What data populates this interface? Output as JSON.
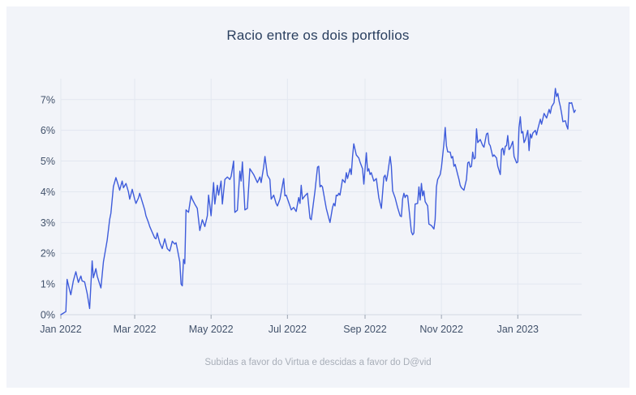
{
  "title": "Racio entre os dois portfolios",
  "caption": "Subidas a favor do Virtua e descidas a favor do D@vid",
  "colors": {
    "page_bg": "#ffffff",
    "card_bg": "#f2f4f9",
    "grid": "#e2e7f0",
    "zero_line": "#d3d9e3",
    "line": "#3e5cdb",
    "title": "#2a3f5f",
    "tick_label": "#42526b",
    "caption": "#a8aeb8"
  },
  "chart_data": {
    "type": "line",
    "title": "Racio entre os dois portfolios",
    "subtitle": "Subidas a favor do Virtua e descidas a favor do D@vid",
    "xlabel": "",
    "ylabel": "",
    "x_unit": "days since 2022-01-01",
    "xlim": [
      0,
      416
    ],
    "ylim": [
      0,
      7.68
    ],
    "grid": true,
    "legend": "none",
    "x_ticks": [
      {
        "label": "Jan 2022",
        "day": 0
      },
      {
        "label": "Mar 2022",
        "day": 59
      },
      {
        "label": "May 2022",
        "day": 120
      },
      {
        "label": "Jul 2022",
        "day": 181
      },
      {
        "label": "Sep 2022",
        "day": 243
      },
      {
        "label": "Nov 2022",
        "day": 304
      },
      {
        "label": "Jan 2023",
        "day": 365
      }
    ],
    "y_ticks": [
      {
        "label": "0%",
        "value": 0
      },
      {
        "label": "1%",
        "value": 1
      },
      {
        "label": "2%",
        "value": 2
      },
      {
        "label": "3%",
        "value": 3
      },
      {
        "label": "4%",
        "value": 4
      },
      {
        "label": "5%",
        "value": 5
      },
      {
        "label": "6%",
        "value": 6
      },
      {
        "label": "7%",
        "value": 7
      }
    ],
    "series": [
      {
        "name": "racio",
        "color": "#3e5cdb",
        "points": [
          [
            0,
            0.0
          ],
          [
            2,
            0.05
          ],
          [
            4,
            0.1
          ],
          [
            5,
            1.15
          ],
          [
            7,
            0.8
          ],
          [
            8,
            0.65
          ],
          [
            10,
            1.1
          ],
          [
            12,
            1.4
          ],
          [
            14,
            1.05
          ],
          [
            16,
            1.26
          ],
          [
            17,
            1.1
          ],
          [
            19,
            1.07
          ],
          [
            21,
            0.7
          ],
          [
            23,
            0.2
          ],
          [
            25,
            1.75
          ],
          [
            26,
            1.2
          ],
          [
            28,
            1.5
          ],
          [
            29,
            1.26
          ],
          [
            31,
            1.0
          ],
          [
            32,
            0.87
          ],
          [
            34,
            1.72
          ],
          [
            37,
            2.42
          ],
          [
            39,
            3.1
          ],
          [
            40,
            3.3
          ],
          [
            42,
            4.17
          ],
          [
            44,
            4.46
          ],
          [
            46,
            4.2
          ],
          [
            47,
            4.05
          ],
          [
            49,
            4.35
          ],
          [
            50,
            4.13
          ],
          [
            52,
            4.27
          ],
          [
            54,
            4.0
          ],
          [
            55,
            3.76
          ],
          [
            57,
            4.08
          ],
          [
            59,
            3.75
          ],
          [
            60,
            3.62
          ],
          [
            62,
            3.8
          ],
          [
            63,
            3.95
          ],
          [
            65,
            3.68
          ],
          [
            67,
            3.41
          ],
          [
            68,
            3.22
          ],
          [
            70,
            3.0
          ],
          [
            71,
            2.87
          ],
          [
            73,
            2.68
          ],
          [
            75,
            2.5
          ],
          [
            76,
            2.47
          ],
          [
            77,
            2.66
          ],
          [
            79,
            2.34
          ],
          [
            81,
            2.15
          ],
          [
            83,
            2.47
          ],
          [
            85,
            2.15
          ],
          [
            87,
            2.07
          ],
          [
            89,
            2.39
          ],
          [
            91,
            2.3
          ],
          [
            92,
            2.34
          ],
          [
            93,
            2.15
          ],
          [
            95,
            1.72
          ],
          [
            96,
            1.0
          ],
          [
            97,
            0.94
          ],
          [
            98,
            1.8
          ],
          [
            99,
            1.66
          ],
          [
            100,
            3.41
          ],
          [
            102,
            3.33
          ],
          [
            104,
            3.87
          ],
          [
            105,
            3.76
          ],
          [
            107,
            3.6
          ],
          [
            109,
            3.46
          ],
          [
            111,
            2.74
          ],
          [
            113,
            3.09
          ],
          [
            115,
            2.87
          ],
          [
            117,
            3.22
          ],
          [
            118,
            3.89
          ],
          [
            120,
            3.22
          ],
          [
            122,
            4.3
          ],
          [
            123,
            3.6
          ],
          [
            125,
            4.21
          ],
          [
            126,
            3.89
          ],
          [
            128,
            4.35
          ],
          [
            129,
            3.6
          ],
          [
            131,
            4.4
          ],
          [
            133,
            4.48
          ],
          [
            135,
            4.4
          ],
          [
            136,
            4.5
          ],
          [
            138,
            5.0
          ],
          [
            139,
            3.33
          ],
          [
            141,
            3.4
          ],
          [
            143,
            4.67
          ],
          [
            144,
            4.35
          ],
          [
            145,
            4.97
          ],
          [
            147,
            3.41
          ],
          [
            149,
            3.46
          ],
          [
            151,
            4.75
          ],
          [
            154,
            4.56
          ],
          [
            157,
            4.3
          ],
          [
            159,
            4.48
          ],
          [
            160,
            4.3
          ],
          [
            162,
            4.8
          ],
          [
            163,
            5.15
          ],
          [
            165,
            4.54
          ],
          [
            167,
            4.4
          ],
          [
            168,
            3.76
          ],
          [
            170,
            3.89
          ],
          [
            172,
            3.62
          ],
          [
            173,
            3.54
          ],
          [
            175,
            3.76
          ],
          [
            178,
            4.43
          ],
          [
            179,
            3.87
          ],
          [
            180,
            3.89
          ],
          [
            183,
            3.54
          ],
          [
            184,
            3.41
          ],
          [
            186,
            3.49
          ],
          [
            188,
            3.36
          ],
          [
            190,
            3.81
          ],
          [
            191,
            3.62
          ],
          [
            192,
            4.21
          ],
          [
            193,
            3.76
          ],
          [
            195,
            3.87
          ],
          [
            197,
            3.95
          ],
          [
            199,
            3.14
          ],
          [
            200,
            3.09
          ],
          [
            203,
            4.03
          ],
          [
            205,
            4.8
          ],
          [
            206,
            4.83
          ],
          [
            207,
            4.16
          ],
          [
            208,
            4.21
          ],
          [
            209,
            4.16
          ],
          [
            212,
            3.46
          ],
          [
            214,
            3.14
          ],
          [
            215,
            3.0
          ],
          [
            217,
            3.49
          ],
          [
            218,
            3.62
          ],
          [
            219,
            3.54
          ],
          [
            220,
            3.89
          ],
          [
            221,
            3.87
          ],
          [
            222,
            3.95
          ],
          [
            223,
            3.89
          ],
          [
            225,
            4.4
          ],
          [
            227,
            4.3
          ],
          [
            228,
            4.62
          ],
          [
            229,
            4.43
          ],
          [
            231,
            4.75
          ],
          [
            232,
            4.56
          ],
          [
            233,
            5.15
          ],
          [
            234,
            5.56
          ],
          [
            236,
            5.2
          ],
          [
            238,
            5.1
          ],
          [
            239,
            4.97
          ],
          [
            241,
            4.75
          ],
          [
            242,
            4.25
          ],
          [
            244,
            5.27
          ],
          [
            245,
            4.67
          ],
          [
            246,
            4.75
          ],
          [
            247,
            4.56
          ],
          [
            248,
            4.62
          ],
          [
            250,
            4.35
          ],
          [
            252,
            4.43
          ],
          [
            254,
            3.8
          ],
          [
            256,
            3.46
          ],
          [
            258,
            4.48
          ],
          [
            259,
            4.54
          ],
          [
            260,
            4.35
          ],
          [
            261,
            4.56
          ],
          [
            263,
            5.15
          ],
          [
            264,
            4.83
          ],
          [
            265,
            4.03
          ],
          [
            267,
            3.8
          ],
          [
            269,
            3.49
          ],
          [
            271,
            3.22
          ],
          [
            272,
            3.19
          ],
          [
            273,
            3.76
          ],
          [
            274,
            3.95
          ],
          [
            275,
            3.81
          ],
          [
            276,
            3.89
          ],
          [
            277,
            3.87
          ],
          [
            280,
            2.7
          ],
          [
            281,
            2.6
          ],
          [
            282,
            2.66
          ],
          [
            283,
            3.6
          ],
          [
            285,
            3.62
          ],
          [
            286,
            4.16
          ],
          [
            287,
            3.73
          ],
          [
            288,
            4.27
          ],
          [
            289,
            3.87
          ],
          [
            290,
            4.03
          ],
          [
            291,
            3.68
          ],
          [
            293,
            3.54
          ],
          [
            294,
            2.95
          ],
          [
            296,
            2.9
          ],
          [
            298,
            2.79
          ],
          [
            299,
            3.09
          ],
          [
            300,
            4.16
          ],
          [
            301,
            4.4
          ],
          [
            302,
            4.48
          ],
          [
            303,
            4.56
          ],
          [
            304,
            4.8
          ],
          [
            306,
            5.56
          ],
          [
            307,
            6.09
          ],
          [
            308,
            5.5
          ],
          [
            309,
            5.3
          ],
          [
            311,
            5.29
          ],
          [
            312,
            5.1
          ],
          [
            313,
            5.15
          ],
          [
            314,
            4.83
          ],
          [
            315,
            4.89
          ],
          [
            317,
            4.56
          ],
          [
            318,
            4.4
          ],
          [
            319,
            4.21
          ],
          [
            320,
            4.13
          ],
          [
            322,
            4.05
          ],
          [
            324,
            4.4
          ],
          [
            325,
            4.94
          ],
          [
            326,
            4.97
          ],
          [
            327,
            4.8
          ],
          [
            328,
            4.83
          ],
          [
            329,
            5.29
          ],
          [
            330,
            5.07
          ],
          [
            331,
            5.1
          ],
          [
            332,
            6.05
          ],
          [
            333,
            5.6
          ],
          [
            335,
            5.7
          ],
          [
            337,
            5.5
          ],
          [
            338,
            5.45
          ],
          [
            340,
            5.88
          ],
          [
            341,
            5.91
          ],
          [
            342,
            5.56
          ],
          [
            343,
            5.5
          ],
          [
            345,
            5.15
          ],
          [
            346,
            5.2
          ],
          [
            348,
            5.1
          ],
          [
            349,
            4.83
          ],
          [
            351,
            4.56
          ],
          [
            352,
            5.37
          ],
          [
            353,
            5.42
          ],
          [
            354,
            5.2
          ],
          [
            355,
            5.48
          ],
          [
            356,
            5.5
          ],
          [
            357,
            5.83
          ],
          [
            358,
            5.37
          ],
          [
            359,
            5.42
          ],
          [
            361,
            5.64
          ],
          [
            362,
            5.15
          ],
          [
            364,
            4.94
          ],
          [
            365,
            4.97
          ],
          [
            366,
            6.09
          ],
          [
            367,
            6.44
          ],
          [
            368,
            5.91
          ],
          [
            369,
            5.96
          ],
          [
            370,
            5.6
          ],
          [
            371,
            5.69
          ],
          [
            373,
            6.0
          ],
          [
            374,
            5.34
          ],
          [
            375,
            5.88
          ],
          [
            376,
            5.75
          ],
          [
            377,
            5.91
          ],
          [
            379,
            6.0
          ],
          [
            380,
            5.85
          ],
          [
            381,
            6.04
          ],
          [
            383,
            6.36
          ],
          [
            384,
            6.2
          ],
          [
            386,
            6.55
          ],
          [
            388,
            6.4
          ],
          [
            390,
            6.68
          ],
          [
            391,
            6.55
          ],
          [
            392,
            6.77
          ],
          [
            394,
            6.9
          ],
          [
            395,
            7.36
          ],
          [
            396,
            7.1
          ],
          [
            397,
            7.2
          ],
          [
            398,
            6.95
          ],
          [
            399,
            6.77
          ],
          [
            400,
            6.55
          ],
          [
            401,
            6.28
          ],
          [
            403,
            6.31
          ],
          [
            404,
            6.15
          ],
          [
            405,
            6.04
          ],
          [
            406,
            6.9
          ],
          [
            407,
            6.88
          ],
          [
            408,
            6.9
          ],
          [
            410,
            6.58
          ],
          [
            411,
            6.65
          ]
        ]
      }
    ]
  }
}
